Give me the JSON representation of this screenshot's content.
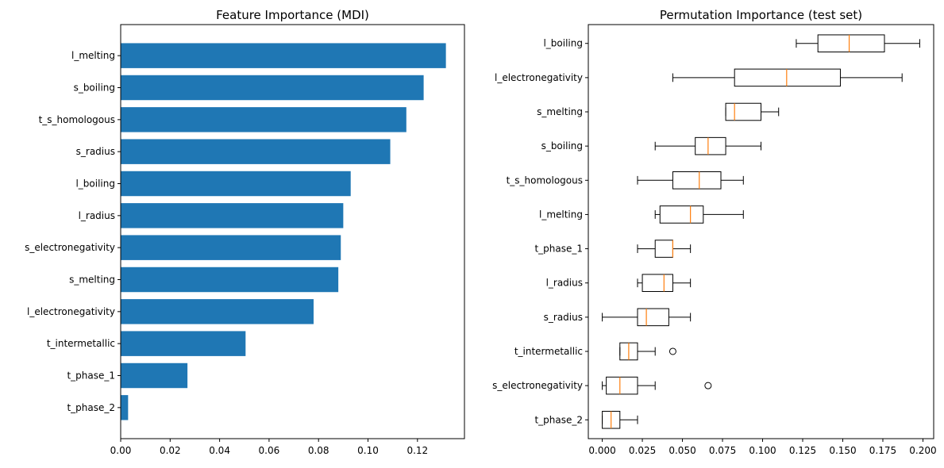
{
  "chart_data": [
    {
      "type": "bar",
      "orientation": "horizontal",
      "title": "Feature Importance (MDI)",
      "xlabel": "",
      "ylabel": "",
      "categories": [
        "t_phase_2",
        "t_phase_1",
        "t_intermetallic",
        "l_electronegativity",
        "s_melting",
        "s_electronegativity",
        "l_radius",
        "l_boiling",
        "s_radius",
        "t_s_homologous",
        "s_boiling",
        "l_melting"
      ],
      "values": [
        0.003,
        0.027,
        0.0505,
        0.078,
        0.088,
        0.089,
        0.09,
        0.093,
        0.109,
        0.1155,
        0.1225,
        0.1315
      ],
      "xlim": [
        0.0,
        0.139
      ],
      "xticks": [
        "0.00",
        "0.02",
        "0.04",
        "0.06",
        "0.08",
        "0.10",
        "0.12"
      ],
      "bar_color": "#1f77b4",
      "grid": false
    },
    {
      "type": "boxplot",
      "orientation": "horizontal",
      "title": "Permutation Importance (test set)",
      "xlabel": "",
      "ylabel": "",
      "categories": [
        "t_phase_2",
        "s_electronegativity",
        "t_intermetallic",
        "s_radius",
        "l_radius",
        "t_phase_1",
        "l_melting",
        "t_s_homologous",
        "s_boiling",
        "s_melting",
        "l_electronegativity",
        "l_boiling"
      ],
      "boxes": [
        {
          "whislo": 0.0,
          "q1": 0.0,
          "med": 0.0055,
          "q3": 0.011,
          "whishi": 0.022,
          "fliers": []
        },
        {
          "whislo": 0.0,
          "q1": 0.0025,
          "med": 0.011,
          "q3": 0.022,
          "whishi": 0.033,
          "fliers": [
            0.066
          ]
        },
        {
          "whislo": 0.011,
          "q1": 0.011,
          "med": 0.0165,
          "q3": 0.022,
          "whishi": 0.033,
          "fliers": [
            0.044
          ]
        },
        {
          "whislo": 0.0,
          "q1": 0.022,
          "med": 0.0275,
          "q3": 0.0415,
          "whishi": 0.055,
          "fliers": []
        },
        {
          "whislo": 0.022,
          "q1": 0.025,
          "med": 0.0385,
          "q3": 0.044,
          "whishi": 0.055,
          "fliers": []
        },
        {
          "whislo": 0.022,
          "q1": 0.033,
          "med": 0.044,
          "q3": 0.044,
          "whishi": 0.055,
          "fliers": []
        },
        {
          "whislo": 0.033,
          "q1": 0.036,
          "med": 0.055,
          "q3": 0.063,
          "whishi": 0.088,
          "fliers": []
        },
        {
          "whislo": 0.022,
          "q1": 0.044,
          "med": 0.0605,
          "q3": 0.074,
          "whishi": 0.088,
          "fliers": []
        },
        {
          "whislo": 0.033,
          "q1": 0.058,
          "med": 0.066,
          "q3": 0.077,
          "whishi": 0.099,
          "fliers": []
        },
        {
          "whislo": 0.077,
          "q1": 0.077,
          "med": 0.0825,
          "q3": 0.099,
          "whishi": 0.11,
          "fliers": []
        },
        {
          "whislo": 0.044,
          "q1": 0.0825,
          "med": 0.115,
          "q3": 0.1485,
          "whishi": 0.187,
          "fliers": []
        },
        {
          "whislo": 0.121,
          "q1": 0.1345,
          "med": 0.154,
          "q3": 0.176,
          "whishi": 0.198,
          "fliers": []
        }
      ],
      "xlim": [
        -0.0087,
        0.2067
      ],
      "xticks": [
        "0.000",
        "0.025",
        "0.050",
        "0.075",
        "0.100",
        "0.125",
        "0.150",
        "0.175",
        "0.200"
      ],
      "box_color": "#000000",
      "median_color": "#ff7f0e",
      "grid": false
    }
  ]
}
